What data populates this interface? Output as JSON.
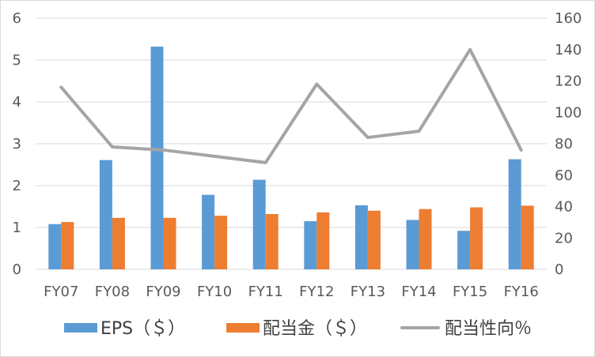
{
  "chart_data": {
    "type": "bar",
    "categories": [
      "FY07",
      "FY08",
      "FY09",
      "FY10",
      "FY11",
      "FY12",
      "FY13",
      "FY14",
      "FY15",
      "FY16"
    ],
    "series": [
      {
        "name": "EPS（＄）",
        "type": "bar",
        "axis": "left",
        "color": "#5B9BD5",
        "values": [
          1.08,
          2.61,
          5.32,
          1.78,
          2.14,
          1.15,
          1.53,
          1.18,
          0.92,
          2.63
        ]
      },
      {
        "name": "配当金（＄）",
        "type": "bar",
        "axis": "left",
        "color": "#ED7D31",
        "values": [
          1.13,
          1.23,
          1.23,
          1.28,
          1.32,
          1.36,
          1.4,
          1.44,
          1.48,
          1.52
        ]
      },
      {
        "name": "配当性向％",
        "type": "line",
        "axis": "right",
        "color": "#A5A5A5",
        "values": [
          116,
          78,
          76,
          72,
          68,
          118,
          84,
          88,
          140,
          76
        ]
      }
    ],
    "yleft": {
      "min": 0,
      "max": 6,
      "ticks": [
        "0",
        "1",
        "2",
        "3",
        "4",
        "5",
        "6"
      ]
    },
    "yright": {
      "min": 0,
      "max": 160,
      "ticks": [
        "0",
        "20",
        "40",
        "60",
        "80",
        "100",
        "120",
        "140",
        "160"
      ]
    },
    "grid": true,
    "legend": "bottom"
  }
}
